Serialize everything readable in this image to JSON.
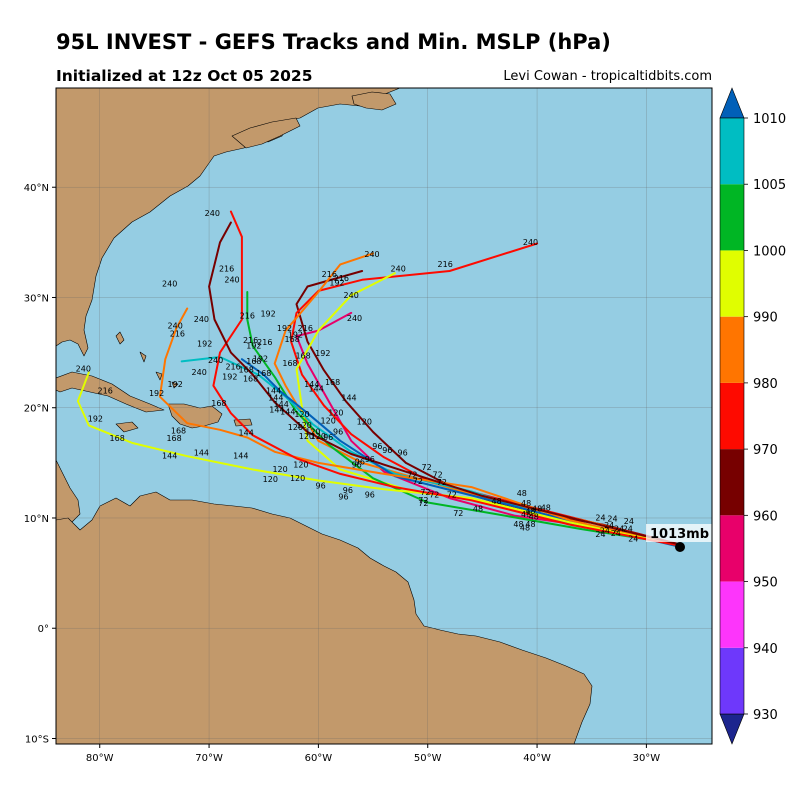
{
  "title": "95L INVEST - GEFS Tracks and Min. MSLP (hPa)",
  "subtitle": "Initialized at 12z Oct 05 2025",
  "credit": "Levi Cowan - tropicaltidbits.com",
  "current_label": "1013mb",
  "map": {
    "lon_range": [
      -84,
      -24
    ],
    "lat_range": [
      -10.5,
      49
    ],
    "lon_ticks": [
      -80,
      -70,
      -60,
      -50,
      -40,
      -30
    ],
    "lon_tick_labels": [
      "80°W",
      "70°W",
      "60°W",
      "50°W",
      "40°W",
      "30°W"
    ],
    "lat_ticks": [
      -10,
      0,
      10,
      20,
      30,
      40
    ],
    "lat_tick_labels": [
      "10°S",
      "0°",
      "10°N",
      "20°N",
      "30°N",
      "40°N"
    ],
    "ocean_color": "#95cde3",
    "land_color": "#c2996b",
    "grid": true
  },
  "colorbar": {
    "bounds": [
      930,
      940,
      950,
      960,
      970,
      980,
      990,
      1000,
      1005,
      1010
    ],
    "labels": [
      "930",
      "940",
      "950",
      "960",
      "970",
      "980",
      "990",
      "1000",
      "1005",
      "1010"
    ],
    "colors": [
      "#6e38fb",
      "#fd35fb",
      "#e8006a",
      "#770000",
      "#fe0a00",
      "#ff7500",
      "#e0fe00",
      "#00b624",
      "#00bdc2"
    ],
    "under_color": "#1c258e",
    "over_color": "#0160b8"
  },
  "tracks": [
    {
      "color": "#e8006a",
      "points": [
        [
          -27,
          7.5
        ],
        [
          -35,
          9.2
        ],
        [
          -42,
          10.2
        ],
        [
          -48,
          11.8
        ],
        [
          -54,
          14.2
        ],
        [
          -57,
          17
        ],
        [
          -59,
          20.5
        ],
        [
          -61,
          24
        ],
        [
          -62,
          26.5
        ],
        [
          -60,
          27
        ],
        [
          -57,
          28.6
        ]
      ],
      "labels": [
        "72",
        "96",
        "120",
        "144",
        "168",
        "192",
        "216",
        "240"
      ]
    },
    {
      "color": "#770000",
      "points": [
        [
          -27,
          7.6
        ],
        [
          -34,
          9.4
        ],
        [
          -41,
          10.6
        ],
        [
          -47,
          12.4
        ],
        [
          -52,
          15
        ],
        [
          -55,
          17.8
        ],
        [
          -57.5,
          20.6
        ],
        [
          -59.5,
          23.4
        ],
        [
          -61,
          26
        ],
        [
          -62,
          29.4
        ],
        [
          -61,
          31
        ],
        [
          -56,
          32.4
        ]
      ],
      "labels": [
        "72",
        "96",
        "120",
        "144",
        "168",
        "192",
        "216",
        "240"
      ]
    },
    {
      "color": "#fe0a00",
      "points": [
        [
          -27,
          7.6
        ],
        [
          -35,
          9.6
        ],
        [
          -43,
          11.6
        ],
        [
          -50,
          13.4
        ],
        [
          -54,
          15.5
        ],
        [
          -57,
          17.6
        ],
        [
          -59.5,
          20.2
        ],
        [
          -61.5,
          23
        ],
        [
          -62.5,
          26
        ],
        [
          -62,
          28.6
        ],
        [
          -60,
          30.6
        ],
        [
          -56,
          31.6
        ],
        [
          -48,
          32.4
        ],
        [
          -40,
          34.9
        ]
      ],
      "labels": [
        "72",
        "96",
        "120",
        "144",
        "168",
        "192",
        "216",
        "240"
      ]
    },
    {
      "color": "#ff7500",
      "points": [
        [
          -27,
          7.5
        ],
        [
          -35,
          9.6
        ],
        [
          -44,
          11.6
        ],
        [
          -51,
          13.6
        ],
        [
          -56,
          15
        ],
        [
          -60,
          17
        ],
        [
          -61.5,
          19.5
        ],
        [
          -63,
          22
        ],
        [
          -64,
          24
        ],
        [
          -63,
          27
        ],
        [
          -60,
          30.5
        ],
        [
          -58,
          33
        ],
        [
          -55,
          34
        ]
      ],
      "labels": [
        "72",
        "96",
        "120",
        "144",
        "168",
        "192",
        "216",
        "240"
      ]
    },
    {
      "color": "#e0fe00",
      "points": [
        [
          -27,
          7.5
        ],
        [
          -36,
          9.4
        ],
        [
          -44,
          11.3
        ],
        [
          -52,
          12.6
        ],
        [
          -58,
          14.4
        ],
        [
          -61,
          17
        ],
        [
          -61.5,
          20
        ],
        [
          -62,
          23.5
        ],
        [
          -60,
          27
        ],
        [
          -57,
          30.2
        ],
        [
          -53,
          32.2
        ]
      ],
      "labels": [
        "72",
        "96",
        "120",
        "144",
        "168",
        "192",
        "216",
        "240"
      ]
    },
    {
      "color": "#00b624",
      "points": [
        [
          -27,
          7.6
        ],
        [
          -36,
          9
        ],
        [
          -44,
          10.4
        ],
        [
          -50,
          11.4
        ],
        [
          -55,
          13.6
        ],
        [
          -59,
          16.6
        ],
        [
          -62,
          19.6
        ],
        [
          -64,
          22.8
        ],
        [
          -66,
          25.6
        ],
        [
          -66.5,
          28
        ],
        [
          -66.5,
          30.5
        ]
      ],
      "labels": [
        "72",
        "96",
        "120",
        "144",
        "168",
        "192",
        "216",
        "240"
      ]
    },
    {
      "color": "#00bdc2",
      "points": [
        [
          -27,
          7.6
        ],
        [
          -37,
          9.5
        ],
        [
          -46,
          12.4
        ],
        [
          -53,
          14
        ],
        [
          -57,
          16
        ],
        [
          -60.5,
          18.5
        ],
        [
          -63,
          21
        ],
        [
          -65.5,
          23
        ],
        [
          -69,
          24.6
        ],
        [
          -72.5,
          24.2
        ]
      ],
      "labels": [
        "72",
        "96",
        "120",
        "144",
        "168",
        "192",
        "216",
        "240"
      ]
    },
    {
      "color": "#0160b8",
      "points": [
        [
          -27,
          7.4
        ],
        [
          -36,
          9.5
        ],
        [
          -45,
          11.8
        ],
        [
          -53,
          13.8
        ],
        [
          -58,
          17
        ],
        [
          -61,
          19.5
        ],
        [
          -63.5,
          21.5
        ],
        [
          -65,
          23
        ],
        [
          -67,
          24.4
        ]
      ],
      "labels": [
        "72",
        "96",
        "120",
        "144",
        "168",
        "192",
        "216"
      ]
    },
    {
      "color": "#ff7500",
      "points": [
        [
          -27,
          7.5
        ],
        [
          -37,
          9.8
        ],
        [
          -46,
          12.8
        ],
        [
          -54,
          14
        ],
        [
          -60,
          15
        ],
        [
          -64,
          16
        ],
        [
          -66.5,
          17.3
        ],
        [
          -69,
          18
        ],
        [
          -72,
          18.6
        ],
        [
          -74.5,
          21
        ],
        [
          -74,
          24.4
        ],
        [
          -73,
          27.2
        ],
        [
          -72,
          29
        ]
      ],
      "labels": [
        "72",
        "96",
        "120",
        "144",
        "168",
        "192",
        "216",
        "240"
      ]
    },
    {
      "color": "#e0fe00",
      "points": [
        [
          -27,
          7.5
        ],
        [
          -37,
          9.6
        ],
        [
          -46,
          11.8
        ],
        [
          -54,
          12.6
        ],
        [
          -60,
          13.4
        ],
        [
          -66,
          14.4
        ],
        [
          -72,
          15.6
        ],
        [
          -77,
          16.8
        ],
        [
          -81,
          18.4
        ],
        [
          -82,
          20.6
        ],
        [
          -81,
          23.2
        ]
      ],
      "labels": [
        "72",
        "96",
        "120",
        "144",
        "168",
        "192",
        "216",
        "240"
      ]
    },
    {
      "color": "#fe0a00",
      "points": [
        [
          -27,
          7.5
        ],
        [
          -37,
          9.4
        ],
        [
          -46,
          11.6
        ],
        [
          -53,
          12.8
        ],
        [
          -58,
          14
        ],
        [
          -62,
          15.4
        ],
        [
          -66,
          17.5
        ],
        [
          -68,
          19.5
        ],
        [
          -69.6,
          22
        ],
        [
          -69,
          25
        ],
        [
          -67,
          28
        ],
        [
          -67,
          32
        ],
        [
          -67,
          35.5
        ],
        [
          -68,
          37.8
        ]
      ],
      "labels": [
        "72",
        "96",
        "120",
        "144",
        "168",
        "192",
        "216",
        "240"
      ]
    },
    {
      "color": "#770000",
      "points": [
        [
          -27,
          7.6
        ],
        [
          -36,
          9.8
        ],
        [
          -45,
          12
        ],
        [
          -52,
          14.2
        ],
        [
          -57,
          15.8
        ],
        [
          -61,
          17.8
        ],
        [
          -64,
          20.5
        ],
        [
          -66,
          23
        ],
        [
          -68,
          25
        ],
        [
          -69.5,
          28
        ],
        [
          -70,
          31
        ],
        [
          -69,
          35
        ],
        [
          -68,
          36.8
        ]
      ],
      "labels": [
        "72",
        "96",
        "120",
        "144",
        "168",
        "192",
        "216",
        "240"
      ]
    }
  ],
  "label_positions": [
    {
      "text": "240",
      "lon": -69.7,
      "lat": 37.6
    },
    {
      "text": "240",
      "lon": -55.1,
      "lat": 33.9
    },
    {
      "text": "240",
      "lon": -52.7,
      "lat": 32.6
    },
    {
      "text": "216",
      "lon": -48.4,
      "lat": 33.0
    },
    {
      "text": "240",
      "lon": -40.6,
      "lat": 35.0
    },
    {
      "text": "216",
      "lon": -68.4,
      "lat": 32.6
    },
    {
      "text": "240",
      "lon": -67.9,
      "lat": 31.6
    },
    {
      "text": "240",
      "lon": -73.6,
      "lat": 31.2
    },
    {
      "text": "216",
      "lon": -59.0,
      "lat": 32.1
    },
    {
      "text": "216",
      "lon": -57.9,
      "lat": 31.7
    },
    {
      "text": "192",
      "lon": -58.3,
      "lat": 31.3
    },
    {
      "text": "240",
      "lon": -57.0,
      "lat": 30.2
    },
    {
      "text": "216",
      "lon": -66.5,
      "lat": 28.3
    },
    {
      "text": "192",
      "lon": -64.6,
      "lat": 28.5
    },
    {
      "text": "240",
      "lon": -70.7,
      "lat": 28.0
    },
    {
      "text": "240",
      "lon": -56.7,
      "lat": 28.1
    },
    {
      "text": "240",
      "lon": -73.1,
      "lat": 27.4
    },
    {
      "text": "216",
      "lon": -72.9,
      "lat": 26.7
    },
    {
      "text": "192",
      "lon": -63.1,
      "lat": 27.2
    },
    {
      "text": "216",
      "lon": -61.2,
      "lat": 27.2
    },
    {
      "text": "192",
      "lon": -62.1,
      "lat": 26.6
    },
    {
      "text": "168",
      "lon": -62.4,
      "lat": 26.2
    },
    {
      "text": "192",
      "lon": -70.4,
      "lat": 25.8
    },
    {
      "text": "216",
      "lon": -66.2,
      "lat": 26.1
    },
    {
      "text": "216",
      "lon": -64.9,
      "lat": 25.9
    },
    {
      "text": "192",
      "lon": -65.9,
      "lat": 25.6
    },
    {
      "text": "192",
      "lon": -59.6,
      "lat": 24.9
    },
    {
      "text": "168",
      "lon": -61.4,
      "lat": 24.7
    },
    {
      "text": "240",
      "lon": -69.4,
      "lat": 24.3
    },
    {
      "text": "192",
      "lon": -65.3,
      "lat": 24.4
    },
    {
      "text": "168",
      "lon": -65.9,
      "lat": 24.2
    },
    {
      "text": "216",
      "lon": -67.8,
      "lat": 23.7
    },
    {
      "text": "168",
      "lon": -66.6,
      "lat": 23.4
    },
    {
      "text": "168",
      "lon": -65.0,
      "lat": 23.1
    },
    {
      "text": "168",
      "lon": -62.6,
      "lat": 24.0
    },
    {
      "text": "240",
      "lon": -70.9,
      "lat": 23.2
    },
    {
      "text": "192",
      "lon": -68.1,
      "lat": 22.8
    },
    {
      "text": "168",
      "lon": -66.2,
      "lat": 22.6
    },
    {
      "text": "240",
      "lon": -81.5,
      "lat": 23.5
    },
    {
      "text": "192",
      "lon": -73.1,
      "lat": 22.1
    },
    {
      "text": "168",
      "lon": -58.7,
      "lat": 22.3
    },
    {
      "text": "144",
      "lon": -60.6,
      "lat": 22.1
    },
    {
      "text": "144",
      "lon": -60.2,
      "lat": 21.7
    },
    {
      "text": "144",
      "lon": -64.1,
      "lat": 21.5
    },
    {
      "text": "216",
      "lon": -79.5,
      "lat": 21.5
    },
    {
      "text": "192",
      "lon": -74.8,
      "lat": 21.3
    },
    {
      "text": "144",
      "lon": -63.9,
      "lat": 20.9
    },
    {
      "text": "144",
      "lon": -57.2,
      "lat": 20.9
    },
    {
      "text": "144",
      "lon": -63.4,
      "lat": 20.3
    },
    {
      "text": "168",
      "lon": -69.1,
      "lat": 20.4
    },
    {
      "text": "144",
      "lon": -63.8,
      "lat": 19.8
    },
    {
      "text": "144",
      "lon": -62.8,
      "lat": 19.6
    },
    {
      "text": "120",
      "lon": -61.5,
      "lat": 19.4
    },
    {
      "text": "120",
      "lon": -58.4,
      "lat": 19.5
    },
    {
      "text": "120",
      "lon": -59.1,
      "lat": 18.8
    },
    {
      "text": "120",
      "lon": -55.8,
      "lat": 18.7
    },
    {
      "text": "192",
      "lon": -80.4,
      "lat": 19.0
    },
    {
      "text": "120",
      "lon": -62.1,
      "lat": 18.2
    },
    {
      "text": "120",
      "lon": -61.3,
      "lat": 18.4
    },
    {
      "text": "120",
      "lon": -60.5,
      "lat": 17.8
    },
    {
      "text": "168",
      "lon": -72.8,
      "lat": 17.9
    },
    {
      "text": "144",
      "lon": -66.6,
      "lat": 17.7
    },
    {
      "text": "120",
      "lon": -61.1,
      "lat": 17.4
    },
    {
      "text": "120",
      "lon": -60.0,
      "lat": 17.4
    },
    {
      "text": "96",
      "lon": -59.1,
      "lat": 17.3
    },
    {
      "text": "168",
      "lon": -73.2,
      "lat": 17.2
    },
    {
      "text": "96",
      "lon": -58.2,
      "lat": 17.8
    },
    {
      "text": "168",
      "lon": -78.4,
      "lat": 17.2
    },
    {
      "text": "96",
      "lon": -54.6,
      "lat": 16.5
    },
    {
      "text": "96",
      "lon": -53.7,
      "lat": 16.1
    },
    {
      "text": "96",
      "lon": -52.3,
      "lat": 15.9
    },
    {
      "text": "144",
      "lon": -70.7,
      "lat": 15.9
    },
    {
      "text": "144",
      "lon": -73.6,
      "lat": 15.6
    },
    {
      "text": "144",
      "lon": -67.1,
      "lat": 15.6
    },
    {
      "text": "96",
      "lon": -55.3,
      "lat": 15.3
    },
    {
      "text": "96",
      "lon": -56.2,
      "lat": 15.1
    },
    {
      "text": "96",
      "lon": -56.5,
      "lat": 14.8
    },
    {
      "text": "72",
      "lon": -50.1,
      "lat": 14.6
    },
    {
      "text": "120",
      "lon": -61.6,
      "lat": 14.8
    },
    {
      "text": "120",
      "lon": -63.5,
      "lat": 14.4
    },
    {
      "text": "72",
      "lon": -51.4,
      "lat": 13.9
    },
    {
      "text": "72",
      "lon": -49.1,
      "lat": 13.9
    },
    {
      "text": "120",
      "lon": -61.9,
      "lat": 13.6
    },
    {
      "text": "72",
      "lon": -50.9,
      "lat": 13.3
    },
    {
      "text": "72",
      "lon": -48.7,
      "lat": 13.2
    },
    {
      "text": "120",
      "lon": -64.4,
      "lat": 13.5
    },
    {
      "text": "96",
      "lon": -59.8,
      "lat": 12.9
    },
    {
      "text": "96",
      "lon": -57.3,
      "lat": 12.5
    },
    {
      "text": "96",
      "lon": -55.3,
      "lat": 12.1
    },
    {
      "text": "96",
      "lon": -57.7,
      "lat": 11.9
    },
    {
      "text": "72",
      "lon": -50.2,
      "lat": 12.3
    },
    {
      "text": "72",
      "lon": -49.4,
      "lat": 12.1
    },
    {
      "text": "72",
      "lon": -47.8,
      "lat": 12.1
    },
    {
      "text": "72",
      "lon": -50.4,
      "lat": 11.6
    },
    {
      "text": "72",
      "lon": -50.4,
      "lat": 11.3
    },
    {
      "text": "72",
      "lon": -47.2,
      "lat": 10.4
    },
    {
      "text": "48",
      "lon": -41.4,
      "lat": 12.2
    },
    {
      "text": "48",
      "lon": -43.7,
      "lat": 11.5
    },
    {
      "text": "48",
      "lon": -41.0,
      "lat": 11.3
    },
    {
      "text": "48",
      "lon": -39.2,
      "lat": 10.9
    },
    {
      "text": "48",
      "lon": -40.0,
      "lat": 10.8
    },
    {
      "text": "48",
      "lon": -45.4,
      "lat": 10.8
    },
    {
      "text": "48",
      "lon": -40.6,
      "lat": 10.6
    },
    {
      "text": "48",
      "lon": -41.0,
      "lat": 10.3
    },
    {
      "text": "48",
      "lon": -40.3,
      "lat": 10.1
    },
    {
      "text": "48",
      "lon": -41.7,
      "lat": 9.4
    },
    {
      "text": "48",
      "lon": -40.6,
      "lat": 9.4
    },
    {
      "text": "48",
      "lon": -41.1,
      "lat": 9.1
    },
    {
      "text": "24",
      "lon": -34.2,
      "lat": 10.0
    },
    {
      "text": "24",
      "lon": -33.1,
      "lat": 9.9
    },
    {
      "text": "24",
      "lon": -31.6,
      "lat": 9.7
    },
    {
      "text": "24",
      "lon": -33.4,
      "lat": 9.3
    },
    {
      "text": "24",
      "lon": -32.5,
      "lat": 9.0
    },
    {
      "text": "24",
      "lon": -31.7,
      "lat": 9.0
    },
    {
      "text": "24",
      "lon": -33.8,
      "lat": 8.8
    },
    {
      "text": "24",
      "lon": -32.8,
      "lat": 8.6
    },
    {
      "text": "24",
      "lon": -34.2,
      "lat": 8.5
    },
    {
      "text": "24",
      "lon": -31.2,
      "lat": 8.1
    }
  ]
}
